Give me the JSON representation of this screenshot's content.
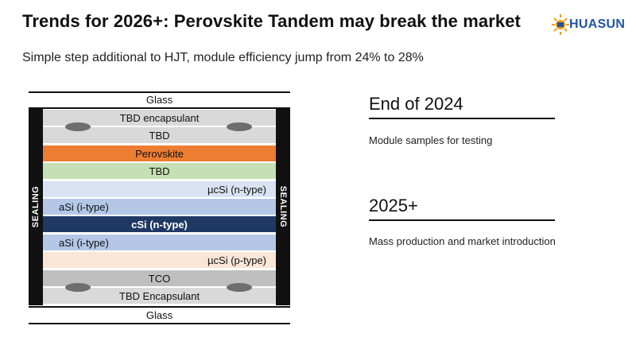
{
  "slide": {
    "title": "Trends for 2026+: Perovskite Tandem may break the market",
    "subtitle": "Simple step additional to HJT, module efficiency jump from 24% to 28%"
  },
  "logo": {
    "text": "HUASUN"
  },
  "stack": {
    "top_label": "Glass",
    "bottom_label": "Glass",
    "seal_left": "SEALING",
    "seal_right": "SEALING",
    "layers": [
      {
        "label": "TBD encapsulant",
        "color": "#d9d9d9"
      },
      {
        "label": "TBD",
        "color": "#d9d9d9"
      },
      {
        "label": "Perovskite",
        "color": "#ed7d31"
      },
      {
        "label": "TBD",
        "color": "#c5e0b4"
      },
      {
        "label": "µcSi (n-type)",
        "color": "#dae3f3"
      },
      {
        "label": "aSi (i-type)",
        "color": "#b4c7e7"
      },
      {
        "label": "cSi (n-type)",
        "color": "#203864"
      },
      {
        "label": "aSi (i-type)",
        "color": "#b4c7e7"
      },
      {
        "label": "µcSi (p-type)",
        "color": "#fbe5d6"
      },
      {
        "label": "TCO",
        "color": "#bfbfbf"
      },
      {
        "label": "TBD Encapsulant",
        "color": "#d9d9d9"
      }
    ]
  },
  "milestones": [
    {
      "heading": "End of 2024",
      "text": "Module samples for testing"
    },
    {
      "heading": "2025+",
      "text": "Mass production and market introduction"
    }
  ]
}
